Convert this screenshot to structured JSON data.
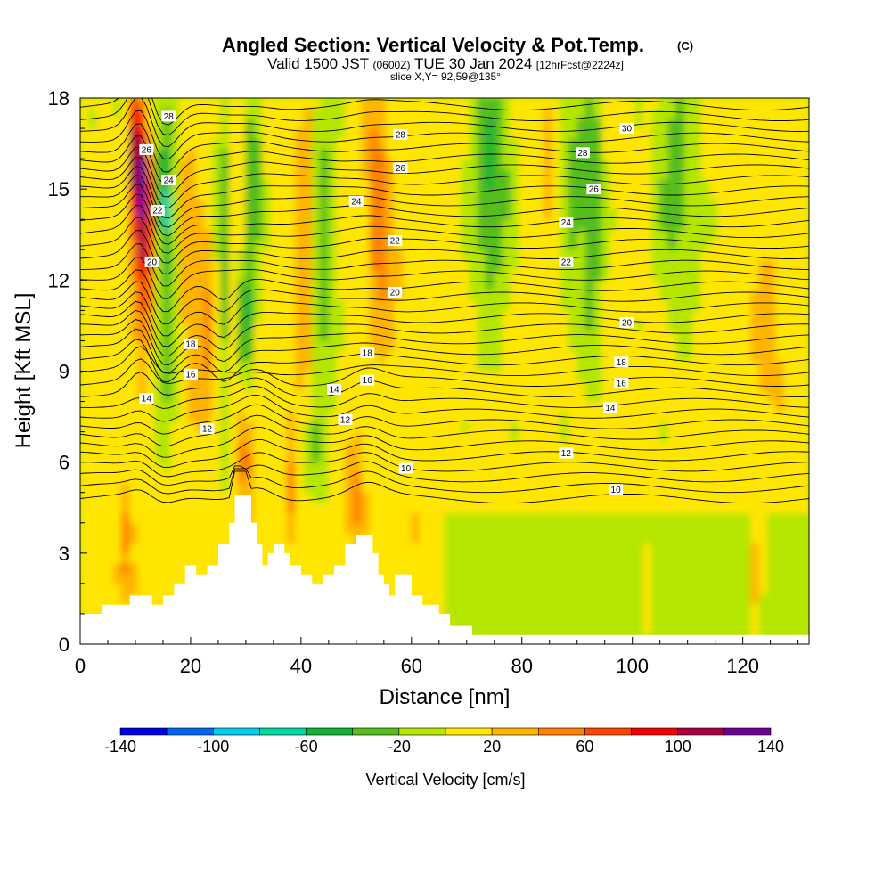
{
  "chart_data": {
    "type": "heatmap",
    "title": "Angled Section: Vertical Velocity & Pot.Temp.",
    "title_suffix": "(C)",
    "subtitle_parts": [
      "Valid 1500 JST",
      "(0600Z)",
      "TUE 30 Jan 2024",
      "[12hrFcst@2224z]"
    ],
    "subtitle2": "slice X,Y= 92,59@135°",
    "xlabel": "Distance [nm]",
    "ylabel": "Height [Kft MSL]",
    "xlim": [
      0,
      132
    ],
    "ylim": [
      0,
      18
    ],
    "xticks": [
      0,
      20,
      40,
      60,
      80,
      100,
      120
    ],
    "yticks": [
      0,
      3,
      6,
      9,
      12,
      15,
      18
    ],
    "colorbar": {
      "label": "Vertical Velocity [cm/s]",
      "bounds": [
        -140,
        -120,
        -100,
        -80,
        -60,
        -40,
        -20,
        0,
        20,
        40,
        60,
        80,
        100,
        120,
        140
      ],
      "tick_labels": [
        "-140",
        "-100",
        "-60",
        "-20",
        "20",
        "60",
        "100",
        "140"
      ],
      "tick_values": [
        -140,
        -100,
        -60,
        -20,
        20,
        60,
        100,
        140
      ],
      "colors": [
        "#0000e6",
        "#0066ee",
        "#00ccee",
        "#00d7a0",
        "#10b432",
        "#55be1e",
        "#b4e600",
        "#ffe600",
        "#ffb400",
        "#ff8200",
        "#ff4600",
        "#f00000",
        "#aa0040",
        "#6e0096"
      ]
    },
    "terrain": [
      [
        0,
        1.0
      ],
      [
        4,
        1.0
      ],
      [
        4,
        1.3
      ],
      [
        9,
        1.3
      ],
      [
        9,
        1.6
      ],
      [
        13,
        1.6
      ],
      [
        13,
        1.3
      ],
      [
        15,
        1.3
      ],
      [
        15,
        1.6
      ],
      [
        17,
        1.6
      ],
      [
        17,
        2.0
      ],
      [
        19,
        2.0
      ],
      [
        19,
        2.6
      ],
      [
        21,
        2.6
      ],
      [
        21,
        2.3
      ],
      [
        23,
        2.3
      ],
      [
        23,
        2.6
      ],
      [
        25,
        2.6
      ],
      [
        25,
        3.3
      ],
      [
        27,
        3.3
      ],
      [
        27,
        4.0
      ],
      [
        28,
        4.0
      ],
      [
        28,
        4.9
      ],
      [
        31,
        4.9
      ],
      [
        31,
        4.0
      ],
      [
        32,
        4.0
      ],
      [
        32,
        3.3
      ],
      [
        33,
        3.3
      ],
      [
        33,
        2.6
      ],
      [
        34,
        2.6
      ],
      [
        34,
        3.0
      ],
      [
        35,
        3.0
      ],
      [
        35,
        3.3
      ],
      [
        37,
        3.3
      ],
      [
        37,
        3.0
      ],
      [
        38,
        3.0
      ],
      [
        38,
        2.6
      ],
      [
        40,
        2.6
      ],
      [
        40,
        2.3
      ],
      [
        42,
        2.3
      ],
      [
        42,
        2.0
      ],
      [
        44,
        2.0
      ],
      [
        44,
        2.3
      ],
      [
        46,
        2.3
      ],
      [
        46,
        2.6
      ],
      [
        48,
        2.6
      ],
      [
        48,
        3.3
      ],
      [
        50,
        3.3
      ],
      [
        50,
        3.6
      ],
      [
        53,
        3.6
      ],
      [
        53,
        3.0
      ],
      [
        54,
        3.0
      ],
      [
        54,
        2.3
      ],
      [
        55,
        2.3
      ],
      [
        55,
        2.0
      ],
      [
        56,
        2.0
      ],
      [
        56,
        1.6
      ],
      [
        57,
        1.6
      ],
      [
        57,
        2.3
      ],
      [
        60,
        2.3
      ],
      [
        60,
        1.6
      ],
      [
        62,
        1.6
      ],
      [
        62,
        1.3
      ],
      [
        65,
        1.3
      ],
      [
        65,
        1.0
      ],
      [
        67,
        1.0
      ],
      [
        67,
        0.6
      ],
      [
        71,
        0.6
      ],
      [
        71,
        0.3
      ],
      [
        132,
        0.3
      ]
    ],
    "theta_labels": [
      {
        "text": "28",
        "x": 16,
        "y": 17.4
      },
      {
        "text": "26",
        "x": 12,
        "y": 16.3
      },
      {
        "text": "24",
        "x": 16,
        "y": 15.3
      },
      {
        "text": "22",
        "x": 14,
        "y": 14.3
      },
      {
        "text": "20",
        "x": 13,
        "y": 12.6
      },
      {
        "text": "28",
        "x": 58,
        "y": 16.8
      },
      {
        "text": "26",
        "x": 58,
        "y": 15.7
      },
      {
        "text": "24",
        "x": 50,
        "y": 14.6
      },
      {
        "text": "22",
        "x": 57,
        "y": 13.3
      },
      {
        "text": "20",
        "x": 57,
        "y": 11.6
      },
      {
        "text": "18",
        "x": 52,
        "y": 9.6
      },
      {
        "text": "16",
        "x": 52,
        "y": 8.7
      },
      {
        "text": "14",
        "x": 46,
        "y": 8.4
      },
      {
        "text": "12",
        "x": 48,
        "y": 7.4
      },
      {
        "text": "10",
        "x": 59,
        "y": 5.8
      },
      {
        "text": "18",
        "x": 20,
        "y": 9.9
      },
      {
        "text": "16",
        "x": 20,
        "y": 8.9
      },
      {
        "text": "14",
        "x": 12,
        "y": 8.1
      },
      {
        "text": "12",
        "x": 23,
        "y": 7.1
      },
      {
        "text": "30",
        "x": 99,
        "y": 17.0
      },
      {
        "text": "28",
        "x": 91,
        "y": 16.2
      },
      {
        "text": "26",
        "x": 93,
        "y": 15.0
      },
      {
        "text": "24",
        "x": 88,
        "y": 13.9
      },
      {
        "text": "22",
        "x": 88,
        "y": 12.6
      },
      {
        "text": "20",
        "x": 99,
        "y": 10.6
      },
      {
        "text": "18",
        "x": 98,
        "y": 9.3
      },
      {
        "text": "16",
        "x": 98,
        "y": 8.6
      },
      {
        "text": "14",
        "x": 96,
        "y": 7.8
      },
      {
        "text": "12",
        "x": 88,
        "y": 6.3
      },
      {
        "text": "10",
        "x": 97,
        "y": 5.1
      }
    ]
  }
}
